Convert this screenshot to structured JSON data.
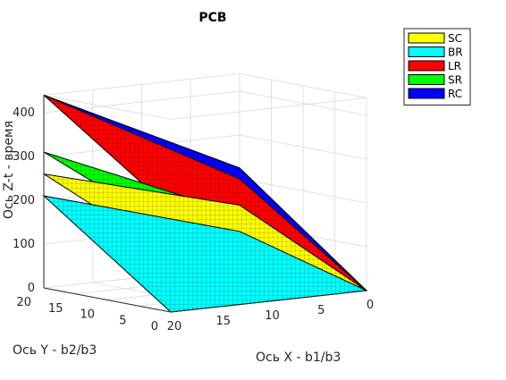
{
  "chart_data": {
    "type": "surface3d",
    "title": "PCB",
    "xlabel": "Ось X - b1/b3",
    "ylabel": "Ось Y - b2/b3",
    "zlabel": "Ось Z-t - время",
    "xlim": [
      0,
      20
    ],
    "ylim": [
      0,
      20
    ],
    "zlim": [
      0,
      440
    ],
    "xticks": [
      "0",
      "5",
      "10",
      "15",
      "20"
    ],
    "yticks": [
      "0",
      "5",
      "10",
      "15",
      "20"
    ],
    "zticks": [
      "0",
      "100",
      "200",
      "300",
      "400"
    ],
    "grid": true,
    "legend_position": "top-right",
    "series": [
      {
        "name": "SC",
        "color": "#ffff00",
        "corners": {
          "x0y0": 0,
          "x20y0": 130,
          "x0y20": 140,
          "x20y20": 260
        }
      },
      {
        "name": "BR",
        "color": "#00ffff",
        "corners": {
          "x0y0": 0,
          "x20y0": 0,
          "x0y20": 80,
          "x20y20": 210
        }
      },
      {
        "name": "LR",
        "color": "#ff0000",
        "corners": {
          "x0y0": 0,
          "x20y0": 235,
          "x0y20": 200,
          "x20y20": 440
        }
      },
      {
        "name": "SR",
        "color": "#00ff00",
        "corners": {
          "x0y0": 0,
          "x20y0": 190,
          "x0y20": 120,
          "x20y20": 310
        }
      },
      {
        "name": "RC",
        "color": "#0000ff",
        "corners": {
          "x0y0": 0,
          "x20y0": 250,
          "x0y20": 225,
          "x20y20": 440
        }
      }
    ]
  }
}
